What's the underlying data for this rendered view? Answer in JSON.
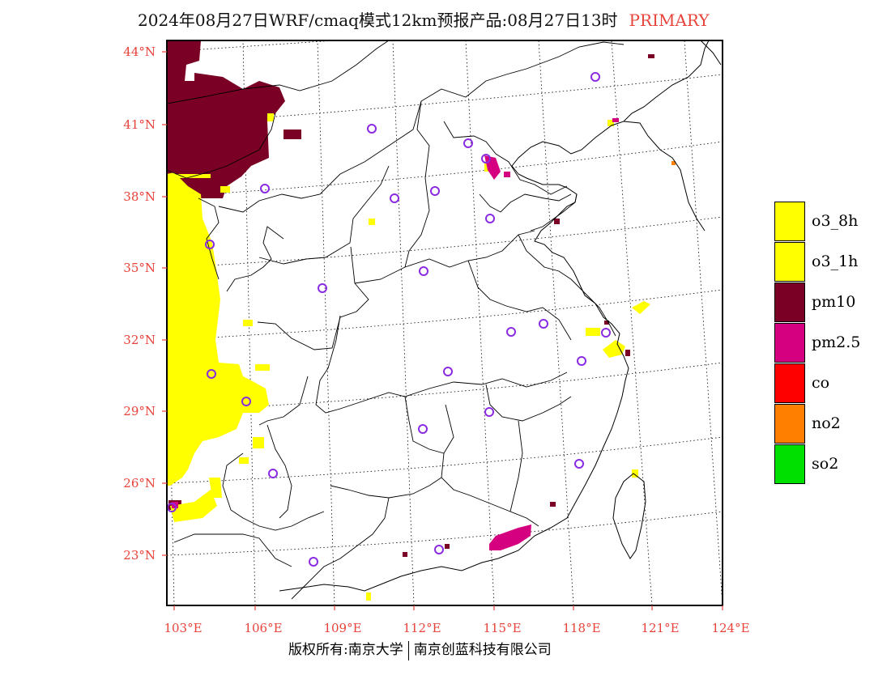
{
  "title": {
    "main": "2024年08月27日WRF/cmaq模式12km预报产品:08月27日13时",
    "tag": "PRIMARY"
  },
  "map": {
    "lat_labels": [
      "44°N",
      "41°N",
      "38°N",
      "35°N",
      "32°N",
      "29°N",
      "26°N",
      "23°N"
    ],
    "lon_labels": [
      "103°E",
      "106°E",
      "109°E",
      "112°E",
      "115°E",
      "118°E",
      "121°E",
      "124°E"
    ],
    "colors": {
      "tick": "#e8433a",
      "frame": "#000000",
      "station": "#8a2be2"
    }
  },
  "legend": {
    "items": [
      {
        "label": "o3_8h",
        "color": "#ffff00"
      },
      {
        "label": "o3_1h",
        "color": "#ffff00"
      },
      {
        "label": "pm10",
        "color": "#7a0026"
      },
      {
        "label": "pm2.5",
        "color": "#d5007f"
      },
      {
        "label": "co",
        "color": "#ff0000"
      },
      {
        "label": "no2",
        "color": "#ff7f00"
      },
      {
        "label": "so2",
        "color": "#00e000"
      }
    ]
  },
  "footer": {
    "left": "版权所有:南京大学",
    "right": "南京创蓝科技有限公司"
  }
}
